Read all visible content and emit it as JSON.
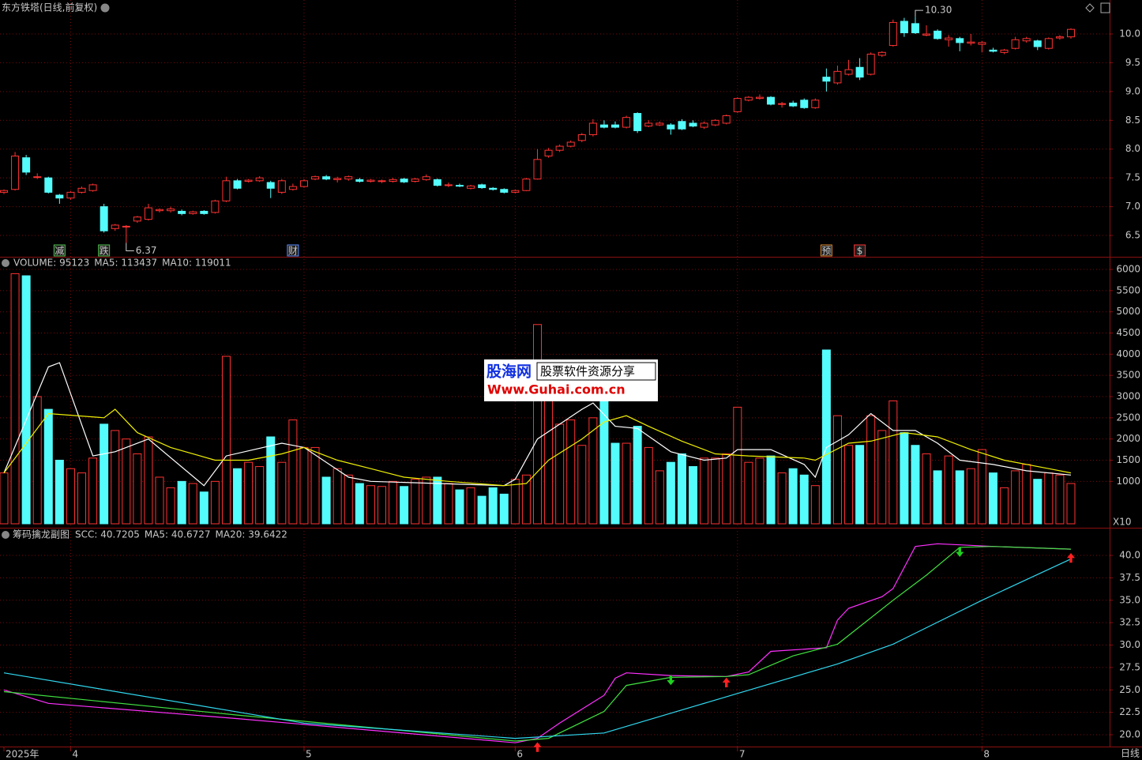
{
  "chart_data": [
    {
      "type": "candlestick",
      "title": "东方铁塔(日线,前复权)",
      "up_color": "#ff3232",
      "down_color": "#54fcfc",
      "ylim": [
        6.13,
        10.59
      ],
      "yticks": [
        6.5,
        {
          "value": 7,
          "label": "7.0"
        },
        7.5,
        {
          "value": 8,
          "label": "8.0"
        },
        8.5,
        {
          "value": 9,
          "label": "9.0"
        },
        9.5,
        {
          "value": 10,
          "label": "10.0"
        }
      ],
      "grid": true,
      "ohlc": [
        [
          7.25,
          7.3,
          7.22,
          7.28
        ],
        [
          7.3,
          7.95,
          7.28,
          7.88
        ],
        [
          7.85,
          7.9,
          7.55,
          7.6
        ],
        [
          7.52,
          7.58,
          7.48,
          7.52
        ],
        [
          7.5,
          7.52,
          7.23,
          7.25
        ],
        [
          7.2,
          7.22,
          7.05,
          7.15
        ],
        [
          7.15,
          7.27,
          7.12,
          7.25
        ],
        [
          7.25,
          7.35,
          7.23,
          7.32
        ],
        [
          7.28,
          7.4,
          7.26,
          7.38
        ],
        [
          7.0,
          7.05,
          6.55,
          6.58
        ],
        [
          6.62,
          6.7,
          6.58,
          6.68
        ],
        [
          6.66,
          6.68,
          6.37,
          6.66
        ],
        [
          6.75,
          6.84,
          6.72,
          6.82
        ],
        [
          6.78,
          7.05,
          6.76,
          6.98
        ],
        [
          6.93,
          6.97,
          6.9,
          6.95
        ],
        [
          6.93,
          7.0,
          6.9,
          6.96
        ],
        [
          6.92,
          6.95,
          6.85,
          6.88
        ],
        [
          6.88,
          6.93,
          6.86,
          6.91
        ],
        [
          6.92,
          6.94,
          6.86,
          6.88
        ],
        [
          6.9,
          7.12,
          6.88,
          7.1
        ],
        [
          7.1,
          7.52,
          7.08,
          7.45
        ],
        [
          7.45,
          7.48,
          7.3,
          7.32
        ],
        [
          7.44,
          7.48,
          7.42,
          7.46
        ],
        [
          7.45,
          7.53,
          7.43,
          7.5
        ],
        [
          7.42,
          7.45,
          7.15,
          7.32
        ],
        [
          7.25,
          7.48,
          7.22,
          7.45
        ],
        [
          7.3,
          7.4,
          7.28,
          7.35
        ],
        [
          7.35,
          7.48,
          7.33,
          7.45
        ],
        [
          7.48,
          7.54,
          7.46,
          7.52
        ],
        [
          7.52,
          7.55,
          7.46,
          7.48
        ],
        [
          7.47,
          7.52,
          7.42,
          7.49
        ],
        [
          7.48,
          7.54,
          7.45,
          7.52
        ],
        [
          7.47,
          7.5,
          7.42,
          7.44
        ],
        [
          7.44,
          7.48,
          7.42,
          7.46
        ],
        [
          7.44,
          7.47,
          7.41,
          7.45
        ],
        [
          7.44,
          7.5,
          7.42,
          7.47
        ],
        [
          7.48,
          7.5,
          7.41,
          7.43
        ],
        [
          7.44,
          7.5,
          7.42,
          7.48
        ],
        [
          7.47,
          7.56,
          7.45,
          7.52
        ],
        [
          7.47,
          7.49,
          7.35,
          7.37
        ],
        [
          7.38,
          7.42,
          7.34,
          7.38
        ],
        [
          7.37,
          7.4,
          7.34,
          7.36
        ],
        [
          7.32,
          7.38,
          7.3,
          7.36
        ],
        [
          7.38,
          7.4,
          7.31,
          7.33
        ],
        [
          7.32,
          7.34,
          7.28,
          7.3
        ],
        [
          7.3,
          7.32,
          7.23,
          7.25
        ],
        [
          7.25,
          7.3,
          7.23,
          7.28
        ],
        [
          7.28,
          7.5,
          7.27,
          7.48
        ],
        [
          7.48,
          8.0,
          7.47,
          7.82
        ],
        [
          7.88,
          8.02,
          7.85,
          7.98
        ],
        [
          7.98,
          8.08,
          7.95,
          8.05
        ],
        [
          8.05,
          8.15,
          8.03,
          8.12
        ],
        [
          8.15,
          8.28,
          8.12,
          8.25
        ],
        [
          8.25,
          8.52,
          8.22,
          8.45
        ],
        [
          8.42,
          8.5,
          8.36,
          8.38
        ],
        [
          8.42,
          8.48,
          8.36,
          8.38
        ],
        [
          8.38,
          8.58,
          8.36,
          8.55
        ],
        [
          8.62,
          8.64,
          8.28,
          8.32
        ],
        [
          8.4,
          8.5,
          8.38,
          8.45
        ],
        [
          8.42,
          8.48,
          8.4,
          8.45
        ],
        [
          8.42,
          8.45,
          8.25,
          8.35
        ],
        [
          8.48,
          8.52,
          8.33,
          8.35
        ],
        [
          8.45,
          8.5,
          8.38,
          8.4
        ],
        [
          8.38,
          8.48,
          8.35,
          8.45
        ],
        [
          8.42,
          8.52,
          8.4,
          8.5
        ],
        [
          8.45,
          8.6,
          8.43,
          8.58
        ],
        [
          8.65,
          8.9,
          8.63,
          8.88
        ],
        [
          8.85,
          8.92,
          8.83,
          8.9
        ],
        [
          8.88,
          8.95,
          8.86,
          8.9
        ],
        [
          8.9,
          8.92,
          8.76,
          8.78
        ],
        [
          8.78,
          8.82,
          8.72,
          8.79
        ],
        [
          8.8,
          8.84,
          8.73,
          8.75
        ],
        [
          8.85,
          8.88,
          8.7,
          8.72
        ],
        [
          8.72,
          8.88,
          8.7,
          8.85
        ],
        [
          9.25,
          9.4,
          9.0,
          9.18
        ],
        [
          9.15,
          9.45,
          9.12,
          9.35
        ],
        [
          9.3,
          9.55,
          9.28,
          9.38
        ],
        [
          9.42,
          9.58,
          9.2,
          9.25
        ],
        [
          9.3,
          9.68,
          9.28,
          9.65
        ],
        [
          9.63,
          9.7,
          9.6,
          9.68
        ],
        [
          9.8,
          10.25,
          9.78,
          10.2
        ],
        [
          10.22,
          10.28,
          9.95,
          10.02
        ],
        [
          10.18,
          10.3,
          10.0,
          10.02
        ],
        [
          9.98,
          10.15,
          9.96,
          10.0
        ],
        [
          10.05,
          10.08,
          9.9,
          9.92
        ],
        [
          9.9,
          9.98,
          9.78,
          9.93
        ],
        [
          9.92,
          9.95,
          9.7,
          9.85
        ],
        [
          9.84,
          10.0,
          9.8,
          9.86
        ],
        [
          9.82,
          9.88,
          9.68,
          9.85
        ],
        [
          9.72,
          9.76,
          9.68,
          9.7
        ],
        [
          9.68,
          9.74,
          9.65,
          9.72
        ],
        [
          9.75,
          9.95,
          9.73,
          9.9
        ],
        [
          9.88,
          9.95,
          9.85,
          9.92
        ],
        [
          9.88,
          9.9,
          9.72,
          9.78
        ],
        [
          9.75,
          9.94,
          9.73,
          9.92
        ],
        [
          9.93,
          9.98,
          9.9,
          9.95
        ],
        [
          9.95,
          10.1,
          9.92,
          10.08
        ]
      ],
      "annotations": [
        {
          "index": 11,
          "value": 6.37
        },
        {
          "index": 82,
          "value": 10.3,
          "label": "10.30"
        }
      ],
      "events": [
        {
          "index": 5,
          "label": "减",
          "color": "#4fc04f"
        },
        {
          "index": 9,
          "label": "跌",
          "color": "#4fc04f"
        },
        {
          "index": 26,
          "label": "财",
          "color": "#5a8cff"
        },
        {
          "index": 74,
          "label": "预",
          "color": "#e08a30"
        },
        {
          "index": 77,
          "label": "$",
          "color": "#ff3030"
        }
      ]
    },
    {
      "type": "bar",
      "unit_label": "X10",
      "ylim": [
        0,
        6280
      ],
      "yticks": [
        1000,
        1500,
        2000,
        2500,
        3000,
        3500,
        4000,
        4500,
        5000,
        5500,
        6000
      ],
      "grid": true,
      "series": [
        {
          "name": "VOLUME: 95123",
          "color": "#e0e0e0",
          "values": [
            1200,
            5900,
            5850,
            3000,
            2700,
            1500,
            1300,
            1200,
            1550,
            2350,
            2200,
            2000,
            1650,
            2050,
            1100,
            850,
            1000,
            950,
            750,
            1000,
            3950,
            1300,
            1450,
            1350,
            2050,
            1450,
            2450,
            1800,
            1800,
            1100,
            1300,
            1150,
            950,
            900,
            880,
            1000,
            880,
            1050,
            1100,
            1100,
            950,
            800,
            850,
            650,
            850,
            700,
            1050,
            1150,
            4700,
            3000,
            2350,
            2450,
            1850,
            2500,
            2950,
            1900,
            1900,
            2300,
            1800,
            1250,
            1450,
            1650,
            1350,
            1550,
            1550,
            1650,
            2750,
            1450,
            1550,
            1600,
            1200,
            1300,
            1150,
            900,
            4100,
            2550,
            1850,
            1850,
            2550,
            2200,
            2900,
            2150,
            1850,
            1650,
            1250,
            1600,
            1250,
            1300,
            1750,
            1200,
            850,
            1250,
            1400,
            1050,
            1200,
            1150,
            950
          ]
        },
        {
          "name": "MA5: 113437",
          "color": "#ffffff",
          "x": [
            0,
            4,
            5,
            8,
            10,
            13,
            18,
            20,
            25,
            27,
            31,
            33,
            45,
            46,
            48,
            52,
            53,
            55,
            57,
            60,
            63,
            65,
            66,
            69,
            72,
            73,
            74,
            76,
            78,
            80,
            82,
            84,
            86,
            89,
            92,
            96
          ],
          "values": [
            1200,
            3700,
            3800,
            1600,
            1700,
            2000,
            900,
            1600,
            1900,
            1800,
            1100,
            1000,
            900,
            1050,
            2000,
            2700,
            2850,
            2300,
            2250,
            1700,
            1500,
            1550,
            1750,
            1750,
            1400,
            1100,
            1800,
            2100,
            2600,
            2200,
            2200,
            1900,
            1500,
            1400,
            1250,
            1150
          ]
        },
        {
          "name": "MA10: 119011",
          "color": "#f0f000",
          "x": [
            0,
            4,
            9,
            10,
            12,
            15,
            19,
            22,
            25,
            27,
            30,
            33,
            36,
            40,
            45,
            47,
            49,
            52,
            54,
            56,
            58,
            61,
            64,
            67,
            72,
            73,
            76,
            78,
            81,
            84,
            87,
            90,
            94,
            96
          ],
          "values": [
            1200,
            2600,
            2500,
            2700,
            2150,
            1800,
            1500,
            1500,
            1650,
            1800,
            1500,
            1300,
            1100,
            1000,
            900,
            950,
            1500,
            2000,
            2400,
            2550,
            2300,
            1950,
            1650,
            1600,
            1550,
            1500,
            1900,
            1950,
            2150,
            2050,
            1750,
            1500,
            1300,
            1200
          ]
        }
      ]
    },
    {
      "type": "line",
      "title": "筹码擒龙副图",
      "ylim": [
        18.68,
        43.0
      ],
      "yticks": [
        {
          "value": 20,
          "label": "20.0"
        },
        22.5,
        {
          "value": 25,
          "label": "25.0"
        },
        27.5,
        {
          "value": 30,
          "label": "30.0"
        },
        32.5,
        {
          "value": 35,
          "label": "35.0"
        },
        37.5,
        {
          "value": 40,
          "label": "40.0"
        }
      ],
      "grid": true,
      "categories": [
        "2025年",
        null,
        null,
        null,
        null,
        null,
        "4",
        null,
        null,
        null,
        null,
        null,
        null,
        null,
        null,
        null,
        null,
        null,
        null,
        null,
        null,
        null,
        null,
        null,
        null,
        null,
        null,
        "5",
        null,
        null,
        null,
        null,
        null,
        null,
        null,
        null,
        null,
        null,
        null,
        null,
        null,
        null,
        null,
        null,
        null,
        null,
        "6",
        null,
        null,
        null,
        null,
        null,
        null,
        null,
        null,
        null,
        null,
        null,
        null,
        null,
        null,
        null,
        null,
        null,
        null,
        null,
        "7",
        null,
        null,
        null,
        null,
        null,
        null,
        null,
        null,
        null,
        null,
        null,
        null,
        null,
        null,
        null,
        null,
        null,
        null,
        null,
        null,
        null,
        "8",
        null,
        null,
        null,
        null,
        null,
        null,
        null
      ],
      "series": [
        {
          "name": "SCC: 40.7205",
          "color": "#ff30ff",
          "x": [
            0,
            4,
            21,
            46,
            48,
            50,
            54,
            55,
            56,
            60,
            65,
            67,
            69,
            74,
            75,
            76,
            79,
            80,
            82,
            84,
            89,
            96
          ],
          "values": [
            25.0,
            23.5,
            21.8,
            19.1,
            19.6,
            21.3,
            24.4,
            26.3,
            26.9,
            26.6,
            26.5,
            27.0,
            29.3,
            29.7,
            32.8,
            34.1,
            35.4,
            36.3,
            41.0,
            41.3,
            41.0,
            40.7
          ]
        },
        {
          "name": "MA5: 40.6727",
          "color": "#40e040",
          "x": [
            0,
            21,
            46,
            49,
            54,
            56,
            60,
            65,
            67,
            71,
            75,
            80,
            83,
            86,
            89,
            96
          ],
          "values": [
            24.8,
            22.2,
            19.3,
            19.6,
            22.6,
            25.5,
            26.4,
            26.5,
            26.7,
            28.8,
            30.1,
            35.0,
            37.8,
            40.9,
            41.0,
            40.7
          ]
        },
        {
          "name": "MA20: 39.6422",
          "color": "#30d8f0",
          "x": [
            0,
            27,
            46,
            54,
            66,
            75,
            80,
            88,
            96
          ],
          "values": [
            26.9,
            21.3,
            19.6,
            20.2,
            24.6,
            27.9,
            30.1,
            35.0,
            39.6
          ]
        }
      ],
      "signals": [
        {
          "index": 48,
          "value": 19.1,
          "kind": "buy"
        },
        {
          "index": 60,
          "value": 25.6,
          "kind": "sell"
        },
        {
          "index": 65,
          "value": 26.3,
          "kind": "buy"
        },
        {
          "index": 86,
          "value": 39.9,
          "kind": "sell"
        },
        {
          "index": 96,
          "value": 40.2,
          "kind": "buy"
        }
      ],
      "buy_color": "#ff2020",
      "sell_color": "#20d020"
    }
  ],
  "period_label": "日线",
  "watermark": {
    "brand": "股海网",
    "slogan": "股票软件资源分享",
    "url": "Www.Guhai.com.cn"
  }
}
